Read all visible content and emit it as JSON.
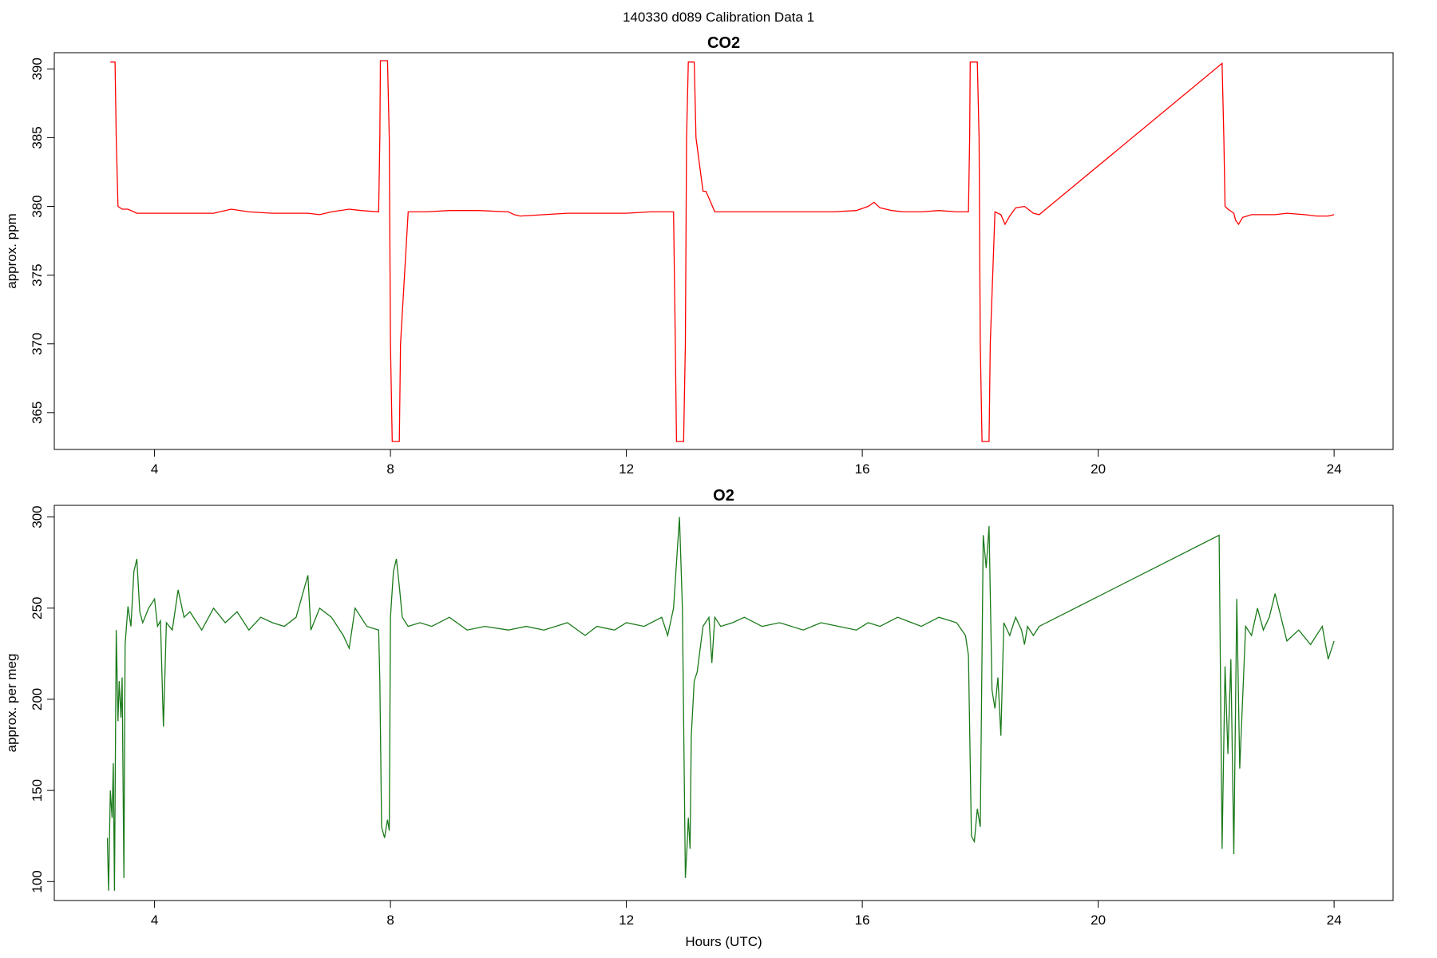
{
  "suptitle": "140330   d089   Calibration Data 1",
  "chart_data": [
    {
      "type": "line",
      "title": "CO2",
      "xlabel": "",
      "ylabel": "approx. ppm",
      "xlim": [
        2.3,
        25.0
      ],
      "ylim": [
        362.9,
        390.6
      ],
      "xticks": [
        4,
        8,
        12,
        16,
        20,
        24
      ],
      "yticks": [
        365,
        370,
        375,
        380,
        385,
        390
      ],
      "grid": false,
      "color": "#ff0000",
      "series": [
        {
          "x": [
            3.25,
            3.33,
            3.35,
            3.38,
            3.45,
            3.55,
            3.7,
            4.0,
            4.3,
            4.6,
            5.0,
            5.3,
            5.6,
            6.0,
            6.3,
            6.6,
            6.8,
            7.0,
            7.3,
            7.5,
            7.8,
            7.82,
            7.83,
            7.95,
            7.98,
            8.0,
            8.03,
            8.15,
            8.17,
            8.3,
            8.6,
            9.0,
            9.5,
            10.0,
            10.1,
            10.2,
            10.6,
            11.0,
            11.5,
            12.0,
            12.4,
            12.8,
            12.83,
            12.85,
            12.97,
            13.0,
            13.02,
            13.05,
            13.15,
            13.18,
            13.3,
            13.35,
            13.5,
            13.8,
            14.2,
            14.6,
            15.0,
            15.5,
            15.9,
            16.1,
            16.2,
            16.3,
            16.5,
            16.7,
            17.0,
            17.3,
            17.6,
            17.8,
            17.82,
            17.83,
            17.95,
            17.98,
            18.0,
            18.03,
            18.15,
            18.17,
            18.25,
            18.35,
            18.42,
            18.5,
            18.6,
            18.75,
            18.9,
            19.0,
            22.1,
            22.13,
            22.15,
            22.2,
            22.3,
            22.33,
            22.38,
            22.45,
            22.6,
            22.8,
            23.0,
            23.2,
            23.5,
            23.7,
            23.9,
            24.0
          ],
          "y": [
            390.5,
            390.5,
            385.0,
            380.0,
            379.8,
            379.8,
            379.5,
            379.5,
            379.5,
            379.5,
            379.5,
            379.8,
            379.6,
            379.5,
            379.5,
            379.5,
            379.4,
            379.6,
            379.8,
            379.7,
            379.6,
            385.0,
            390.6,
            390.6,
            385.0,
            370.0,
            362.9,
            362.9,
            370.0,
            379.6,
            379.6,
            379.7,
            379.7,
            379.6,
            379.4,
            379.3,
            379.4,
            379.5,
            379.5,
            379.5,
            379.6,
            379.6,
            370.0,
            362.9,
            362.9,
            370.0,
            385.0,
            390.5,
            390.5,
            385.0,
            381.1,
            381.1,
            379.6,
            379.6,
            379.6,
            379.6,
            379.6,
            379.6,
            379.7,
            380.0,
            380.3,
            379.9,
            379.7,
            379.6,
            379.6,
            379.7,
            379.6,
            379.6,
            385.0,
            390.5,
            390.5,
            385.0,
            370.0,
            362.9,
            362.9,
            370.0,
            379.6,
            379.4,
            378.7,
            379.3,
            379.9,
            380.0,
            379.5,
            379.4,
            390.4,
            385.0,
            380.0,
            379.8,
            379.5,
            379.0,
            378.7,
            379.2,
            379.4,
            379.4,
            379.4,
            379.5,
            379.4,
            379.3,
            379.3,
            379.4
          ]
        }
      ]
    },
    {
      "type": "line",
      "title": "O2",
      "xlabel": "Hours (UTC)",
      "ylabel": "approx. per meg",
      "xlim": [
        2.3,
        25.0
      ],
      "ylim": [
        94.0,
        302.0
      ],
      "xticks": [
        4,
        8,
        12,
        16,
        20,
        24
      ],
      "yticks": [
        100,
        150,
        200,
        250,
        300
      ],
      "grid": false,
      "color": "#1a7a1a",
      "series": [
        {
          "x": [
            3.2,
            3.22,
            3.25,
            3.28,
            3.3,
            3.32,
            3.35,
            3.38,
            3.4,
            3.43,
            3.45,
            3.48,
            3.5,
            3.55,
            3.6,
            3.65,
            3.7,
            3.75,
            3.8,
            3.9,
            4.0,
            4.05,
            4.1,
            4.15,
            4.2,
            4.3,
            4.4,
            4.5,
            4.6,
            4.8,
            5.0,
            5.2,
            5.4,
            5.6,
            5.8,
            6.0,
            6.2,
            6.4,
            6.6,
            6.65,
            6.8,
            7.0,
            7.2,
            7.3,
            7.4,
            7.6,
            7.8,
            7.82,
            7.85,
            7.9,
            7.95,
            7.98,
            8.0,
            8.05,
            8.1,
            8.15,
            8.2,
            8.3,
            8.5,
            8.7,
            9.0,
            9.3,
            9.6,
            10.0,
            10.3,
            10.6,
            11.0,
            11.3,
            11.5,
            11.8,
            12.0,
            12.3,
            12.6,
            12.7,
            12.8,
            12.85,
            12.9,
            12.95,
            13.0,
            13.03,
            13.05,
            13.08,
            13.1,
            13.15,
            13.2,
            13.3,
            13.4,
            13.45,
            13.5,
            13.6,
            13.8,
            14.0,
            14.3,
            14.6,
            15.0,
            15.3,
            15.6,
            15.9,
            16.1,
            16.3,
            16.6,
            17.0,
            17.3,
            17.6,
            17.75,
            17.8,
            17.85,
            17.9,
            17.95,
            18.0,
            18.05,
            18.1,
            18.15,
            18.2,
            18.25,
            18.3,
            18.35,
            18.4,
            18.5,
            18.6,
            18.7,
            18.75,
            18.8,
            18.9,
            19.0,
            22.05,
            22.1,
            22.15,
            22.2,
            22.25,
            22.3,
            22.35,
            22.4,
            22.5,
            22.6,
            22.7,
            22.8,
            22.9,
            23.0,
            23.2,
            23.4,
            23.6,
            23.8,
            23.9,
            24.0
          ],
          "y": [
            124,
            95,
            150,
            135,
            165,
            95,
            238,
            188,
            210,
            190,
            212,
            102,
            230,
            251,
            240,
            270,
            277,
            248,
            242,
            250,
            255,
            240,
            243,
            185,
            242,
            238,
            260,
            245,
            248,
            238,
            250,
            242,
            248,
            238,
            245,
            242,
            240,
            245,
            268,
            238,
            250,
            245,
            235,
            228,
            250,
            240,
            238,
            210,
            130,
            124,
            134,
            128,
            245,
            270,
            277,
            262,
            245,
            240,
            242,
            240,
            245,
            238,
            240,
            238,
            240,
            238,
            242,
            235,
            240,
            238,
            242,
            240,
            245,
            235,
            250,
            275,
            300,
            250,
            102,
            120,
            135,
            118,
            180,
            210,
            215,
            240,
            245,
            220,
            245,
            240,
            242,
            245,
            240,
            242,
            238,
            242,
            240,
            238,
            242,
            240,
            245,
            240,
            245,
            242,
            235,
            224,
            125,
            122,
            140,
            130,
            290,
            272,
            295,
            205,
            195,
            212,
            180,
            242,
            235,
            245,
            238,
            230,
            240,
            235,
            240,
            290,
            118,
            218,
            170,
            222,
            115,
            255,
            162,
            240,
            235,
            250,
            238,
            245,
            258,
            232,
            238,
            230,
            240,
            222,
            232
          ]
        }
      ]
    }
  ]
}
